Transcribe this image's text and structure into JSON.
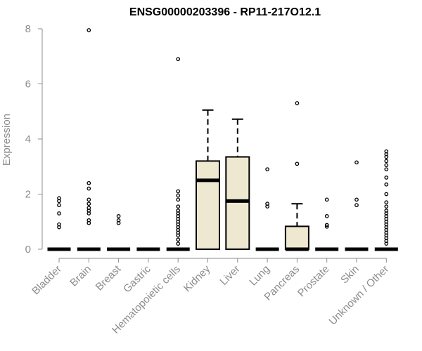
{
  "chart_data": {
    "type": "boxplot",
    "title": "ENSG00000203396 - RP11-217O12.1",
    "xlabel": "",
    "ylabel": "Expression",
    "ylim": [
      0,
      8
    ],
    "yticks": [
      0,
      2,
      4,
      6,
      8
    ],
    "grid": false,
    "legend": "none",
    "box_fill": "#efe8d0",
    "stroke_color": "#000000",
    "label_color": "#8c8c8c",
    "categories": [
      "Bladder",
      "Brain",
      "Breast",
      "Gastric",
      "Hematopoietic cells",
      "Kidney",
      "Liver",
      "Lung",
      "Pancreas",
      "Prostate",
      "Skin",
      "Unknown / Other"
    ],
    "series": [
      {
        "category": "Bladder",
        "min": 0,
        "q1": 0,
        "median": 0,
        "q3": 0,
        "max": 0,
        "outliers": [
          0.8,
          0.9,
          1.3,
          1.6,
          1.75,
          1.85
        ]
      },
      {
        "category": "Brain",
        "min": 0,
        "q1": 0,
        "median": 0,
        "q3": 0,
        "max": 0,
        "outliers": [
          0.95,
          1.05,
          1.3,
          1.4,
          1.5,
          1.65,
          1.8,
          2.2,
          2.4,
          7.95
        ]
      },
      {
        "category": "Breast",
        "min": 0,
        "q1": 0,
        "median": 0,
        "q3": 0,
        "max": 0,
        "outliers": [
          0.95,
          1.05,
          1.2
        ]
      },
      {
        "category": "Gastric",
        "min": 0,
        "q1": 0,
        "median": 0,
        "q3": 0,
        "max": 0,
        "outliers": []
      },
      {
        "category": "Hematopoietic cells",
        "min": 0,
        "q1": 0,
        "median": 0,
        "q3": 0,
        "max": 0,
        "outliers": [
          0.2,
          0.35,
          0.5,
          0.6,
          0.7,
          0.8,
          0.9,
          1.0,
          1.1,
          1.2,
          1.3,
          1.4,
          1.55,
          1.8,
          1.95,
          2.1,
          6.9
        ]
      },
      {
        "category": "Kidney",
        "min": 0,
        "q1": 0,
        "median": 2.5,
        "q3": 3.2,
        "max": 5.05,
        "outliers": []
      },
      {
        "category": "Liver",
        "min": 0,
        "q1": 0,
        "median": 1.75,
        "q3": 3.35,
        "max": 4.72,
        "outliers": []
      },
      {
        "category": "Lung",
        "min": 0,
        "q1": 0,
        "median": 0,
        "q3": 0,
        "max": 0,
        "outliers": [
          1.55,
          1.65,
          2.9
        ]
      },
      {
        "category": "Pancreas",
        "min": 0,
        "q1": 0,
        "median": 0,
        "q3": 0.83,
        "max": 1.65,
        "outliers": [
          3.1,
          5.3
        ]
      },
      {
        "category": "Prostate",
        "min": 0,
        "q1": 0,
        "median": 0,
        "q3": 0,
        "max": 0,
        "outliers": [
          0.82,
          0.88,
          1.2,
          1.8
        ]
      },
      {
        "category": "Skin",
        "min": 0,
        "q1": 0,
        "median": 0,
        "q3": 0,
        "max": 0,
        "outliers": [
          1.6,
          1.8,
          3.15
        ]
      },
      {
        "category": "Unknown / Other",
        "min": 0,
        "q1": 0,
        "median": 0,
        "q3": 0,
        "max": 0,
        "outliers": [
          0.2,
          0.3,
          0.4,
          0.5,
          0.6,
          0.7,
          0.8,
          0.9,
          1.0,
          1.1,
          1.2,
          1.3,
          1.4,
          1.55,
          1.7,
          2.0,
          2.35,
          2.6,
          2.9,
          3.05,
          3.2,
          3.35,
          3.45,
          3.55
        ]
      }
    ]
  }
}
